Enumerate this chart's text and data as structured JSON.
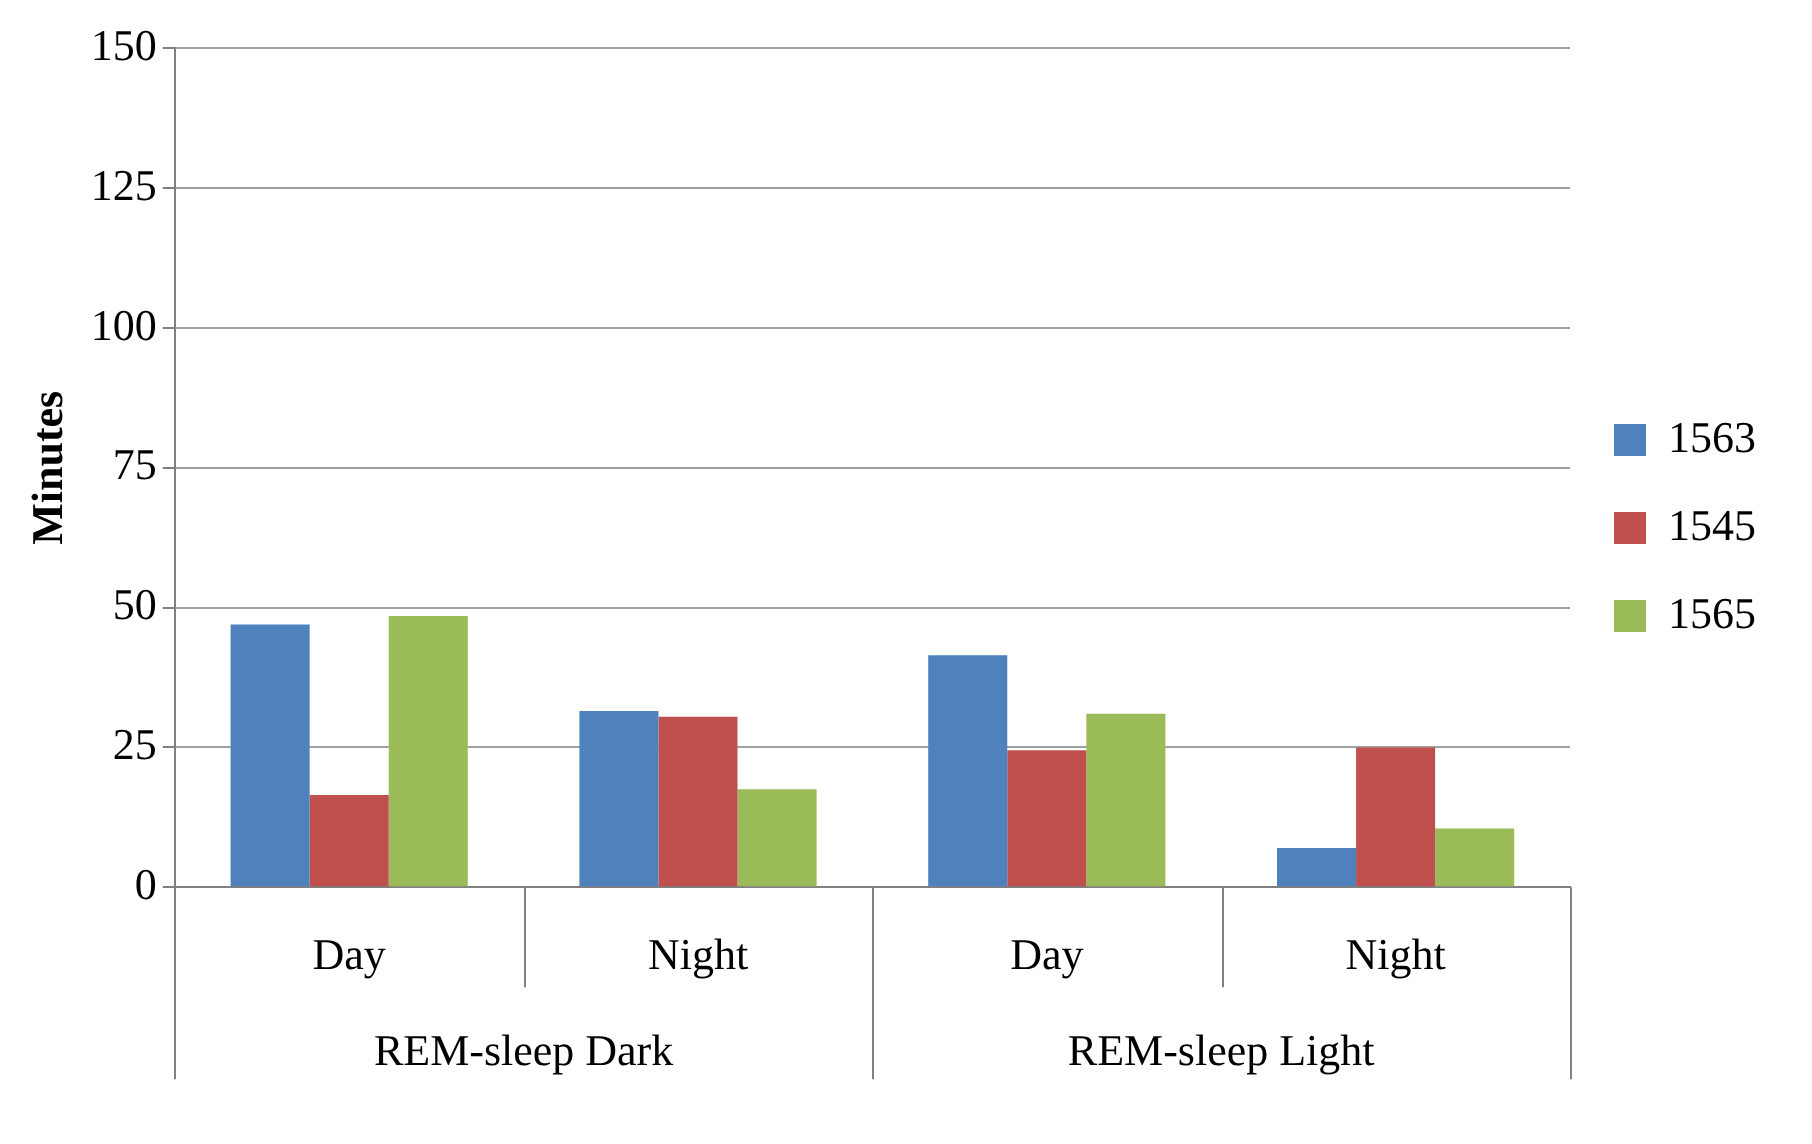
{
  "chart_data": {
    "type": "bar",
    "ylabel": "Minutes",
    "categories": [
      "Day",
      "Night",
      "Day",
      "Night"
    ],
    "annotations": [
      "REM-sleep Dark",
      "REM-sleep Light"
    ],
    "series": [
      {
        "name": "1563",
        "color": "#4f81bd",
        "values": [
          47,
          31.5,
          41.5,
          7
        ]
      },
      {
        "name": "1545",
        "color": "#c0504d",
        "values": [
          16.5,
          30.5,
          24.5,
          25
        ]
      },
      {
        "name": "1565",
        "color": "#9bbb59",
        "values": [
          48.5,
          17.5,
          31,
          10.5
        ]
      }
    ],
    "ylim": [
      0,
      150
    ],
    "yticks": [
      0,
      25,
      50,
      75,
      100,
      125,
      150
    ],
    "grid": "y",
    "legend": "right"
  }
}
